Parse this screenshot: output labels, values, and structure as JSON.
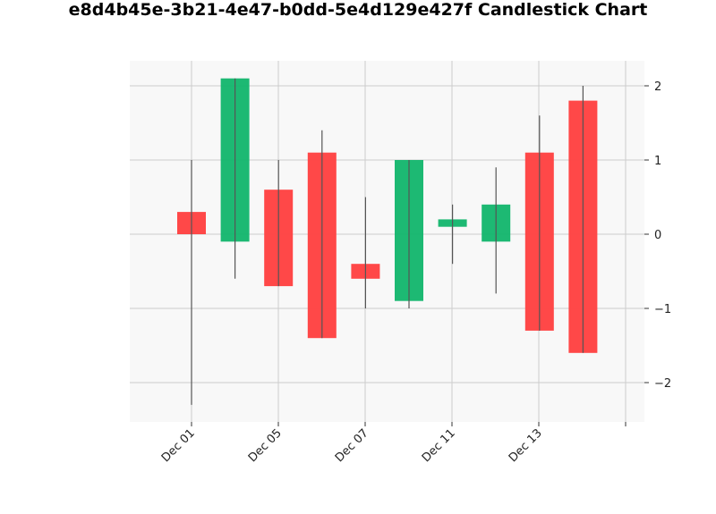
{
  "chart_data": {
    "type": "candlestick",
    "title": "e8d4b45e-3b21-4e47-b0dd-5e4d129e427f Candlestick Chart",
    "xlabel": "",
    "ylabel": "ㅤㅤㅤㅤ",
    "ylim": [
      -2.55,
      2.32
    ],
    "x_tick_labels": [
      "Dec 01",
      "Dec 05",
      "Dec 07",
      "Dec 11",
      "Dec 13"
    ],
    "y_ticks": [
      2,
      1,
      0,
      -1,
      -2
    ],
    "y_tick_labels": [
      "2",
      "1",
      "0",
      "−1",
      "−2"
    ],
    "grid": true,
    "colors": {
      "up": "#18b870",
      "down": "#ff4444",
      "wick": "#555555",
      "grid": "#cccccc",
      "plot_bg": "#f8f8f8"
    },
    "candles": [
      {
        "open": 0.3,
        "high": 1.0,
        "low": -2.3,
        "close": 0.0
      },
      {
        "open": -0.1,
        "high": 2.1,
        "low": -0.6,
        "close": 2.1
      },
      {
        "open": 0.6,
        "high": 1.0,
        "low": -0.7,
        "close": -0.7
      },
      {
        "open": 1.1,
        "high": 1.4,
        "low": -1.4,
        "close": -1.4
      },
      {
        "open": -0.4,
        "high": 0.5,
        "low": -1.0,
        "close": -0.6
      },
      {
        "open": -0.9,
        "high": 1.0,
        "low": -1.0,
        "close": 1.0
      },
      {
        "open": 0.1,
        "high": 0.4,
        "low": -0.4,
        "close": 0.2
      },
      {
        "open": -0.1,
        "high": 0.9,
        "low": -0.8,
        "close": 0.4
      },
      {
        "open": 1.1,
        "high": 1.6,
        "low": -1.3,
        "close": -1.3
      },
      {
        "open": 1.8,
        "high": 2.0,
        "low": -1.6,
        "close": -1.6
      }
    ]
  }
}
